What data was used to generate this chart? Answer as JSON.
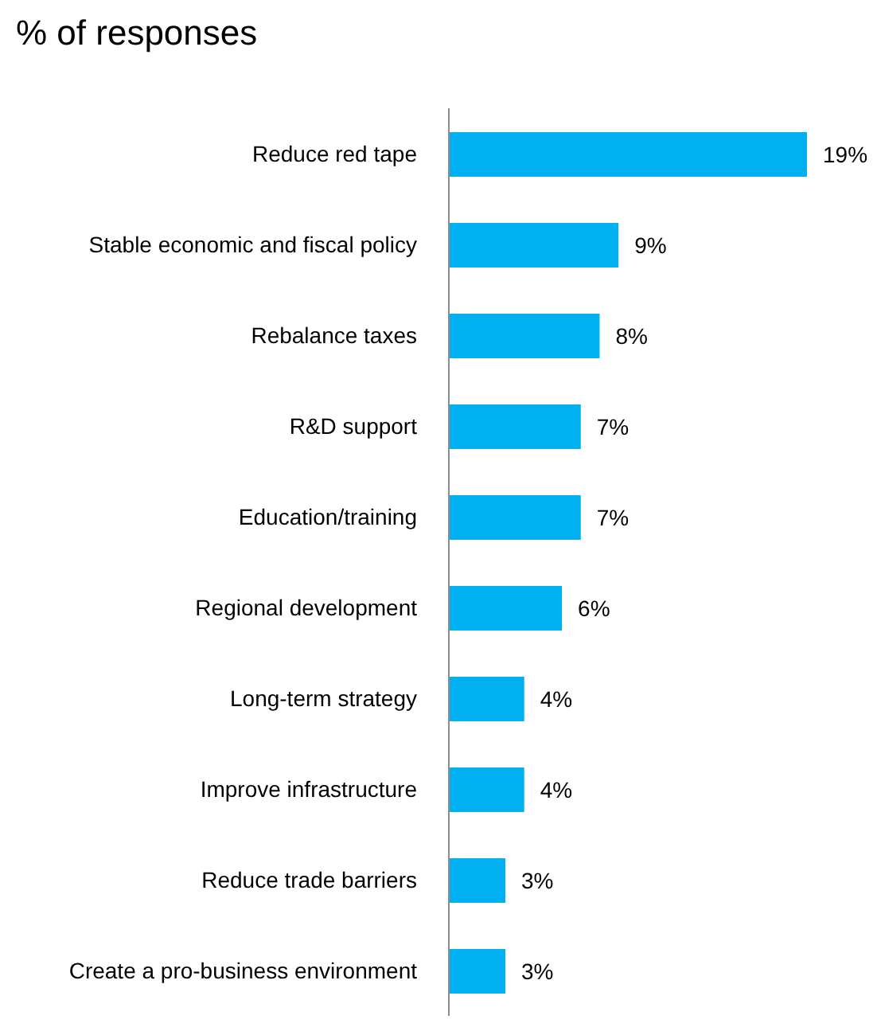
{
  "chart_data": {
    "type": "bar",
    "orientation": "horizontal",
    "title": "% of responses",
    "categories": [
      "Reduce red tape",
      "Stable economic and fiscal policy",
      "Rebalance taxes",
      "R&D support",
      "Education/training",
      "Regional development",
      "Long-term strategy",
      "Improve infrastructure",
      "Reduce trade barriers",
      "Create a pro-business environment"
    ],
    "values": [
      19,
      9,
      8,
      7,
      7,
      6,
      4,
      4,
      3,
      3
    ],
    "value_labels": [
      "19%",
      "9%",
      "8%",
      "7%",
      "7%",
      "6%",
      "4%",
      "4%",
      "3%",
      "3%"
    ],
    "color": "#00b0f0",
    "grid": false,
    "legend": false,
    "tick_labels": "y"
  }
}
